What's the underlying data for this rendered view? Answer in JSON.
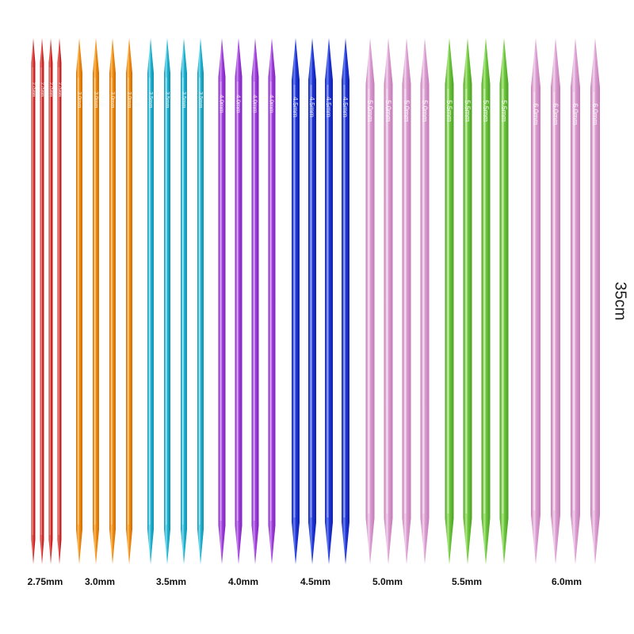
{
  "length": "35cm",
  "groups": [
    {
      "size": "2.75mm",
      "color": "#d42a2a",
      "highlight": "#f07a70",
      "tip": "#b81e1e",
      "imprint": "2.75mm"
    },
    {
      "size": "3.0mm",
      "color": "#ef8a12",
      "highlight": "#ffc060",
      "tip": "#d06c00",
      "imprint": "3.0mm"
    },
    {
      "size": "3.5mm",
      "color": "#1fb0cf",
      "highlight": "#7fe2f2",
      "tip": "#118fad",
      "imprint": "3.5mm"
    },
    {
      "size": "4.0mm",
      "color": "#9d3ed9",
      "highlight": "#cd8cf2",
      "tip": "#7e22bd",
      "imprint": "4.0mm"
    },
    {
      "size": "4.5mm",
      "color": "#1d33d4",
      "highlight": "#6a82f5",
      "tip": "#0f20ad",
      "imprint": "4.5mm"
    },
    {
      "size": "5.0mm",
      "color": "#d99ccf",
      "highlight": "#f4d4ee",
      "tip": "#c27ab5",
      "imprint": "5.0mm"
    },
    {
      "size": "5.5mm",
      "color": "#6cc43c",
      "highlight": "#b0ea86",
      "tip": "#4aa022",
      "imprint": "5.5mm"
    },
    {
      "size": "6.0mm",
      "color": "#d99ccf",
      "highlight": "#f4d4ee",
      "tip": "#c27ab5",
      "imprint": "6.0mm"
    }
  ]
}
